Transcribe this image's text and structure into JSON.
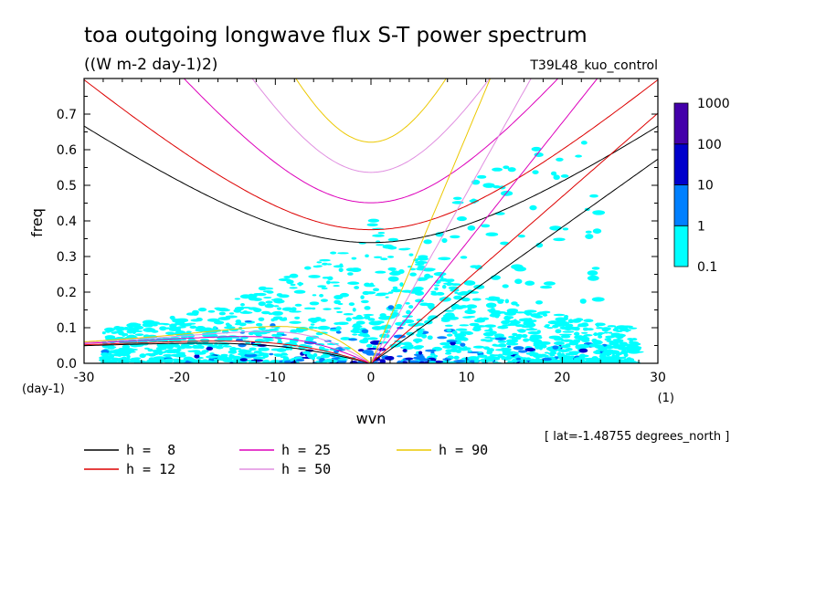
{
  "title": "toa outgoing longwave flux S-T power spectrum",
  "subtitle": "((W m-2 day-1)2)",
  "experiment": "T39L48_kuo_control",
  "lat_note": "[ lat=-1.48755 degrees_north ]",
  "chart_data": {
    "type": "contour",
    "xlabel": "wvn",
    "ylabel": "freq",
    "x_unit": "(1)",
    "y_unit": "(day-1)",
    "xlim": [
      -30,
      30
    ],
    "ylim": [
      0.0,
      0.8
    ],
    "x_ticks": [
      -30,
      -20,
      -10,
      0,
      10,
      20,
      30
    ],
    "x_tick_labels": [
      "-30",
      "-20",
      "-10",
      "0",
      "10",
      "20",
      "30"
    ],
    "y_ticks": [
      0.0,
      0.1,
      0.2,
      0.3,
      0.4,
      0.5,
      0.6,
      0.7
    ],
    "y_tick_labels": [
      "0.0",
      "0.1",
      "0.2",
      "0.3",
      "0.4",
      "0.5",
      "0.6",
      "0.7"
    ],
    "colorbar": {
      "levels": [
        "0.1",
        "1",
        "10",
        "100",
        "1000"
      ],
      "colors": [
        "#00ffff",
        "#0080ff",
        "#0000cc",
        "#4400aa"
      ]
    },
    "dispersion_curves": [
      {
        "label": "h =  8",
        "h": 8,
        "color": "#000000"
      },
      {
        "label": "h = 12",
        "h": 12,
        "color": "#dd0000"
      },
      {
        "label": "h = 25",
        "h": 25,
        "color": "#dd00bb"
      },
      {
        "label": "h = 50",
        "h": 50,
        "color": "#e08ee0"
      },
      {
        "label": "h = 90",
        "h": 90,
        "color": "#ecc800"
      }
    ]
  },
  "colors": {
    "cyan": "#00ffff",
    "blue": "#0080ff",
    "dark_blue": "#0000cc",
    "purple": "#4400aa"
  }
}
